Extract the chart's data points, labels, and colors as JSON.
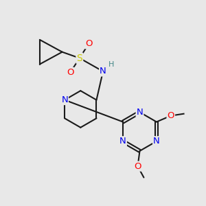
{
  "bg_color": "#e8e8e8",
  "bond_color": "#1a1a1a",
  "bond_width": 1.5,
  "atom_colors": {
    "N": "#0000ee",
    "O": "#ff0000",
    "S": "#cccc00",
    "H": "#448888",
    "C": "#1a1a1a"
  },
  "font_size": 8.5,
  "fig_size": [
    3.0,
    3.0
  ],
  "dpi": 100
}
